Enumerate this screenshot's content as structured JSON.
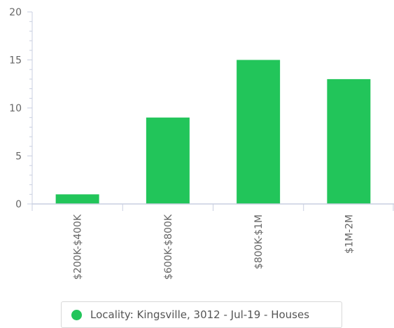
{
  "chart_data": {
    "type": "bar",
    "categories": [
      "$200K-$400K",
      "$600K-$800K",
      "$800K-$1M",
      "$1M-2M"
    ],
    "series": [
      {
        "name": "Locality: Kingsville, 3012 - Jul-19 - Houses",
        "values": [
          1,
          9,
          15,
          13
        ],
        "color": "#22c55a"
      }
    ],
    "ylim": [
      0,
      20
    ],
    "yticks": [
      "0",
      "5",
      "10",
      "15",
      "20"
    ],
    "grid": false,
    "legend_position": "bottom-center"
  },
  "legend": {
    "label": "Locality: Kingsville, 3012 - Jul-19 - Houses",
    "color": "#22c55a"
  }
}
